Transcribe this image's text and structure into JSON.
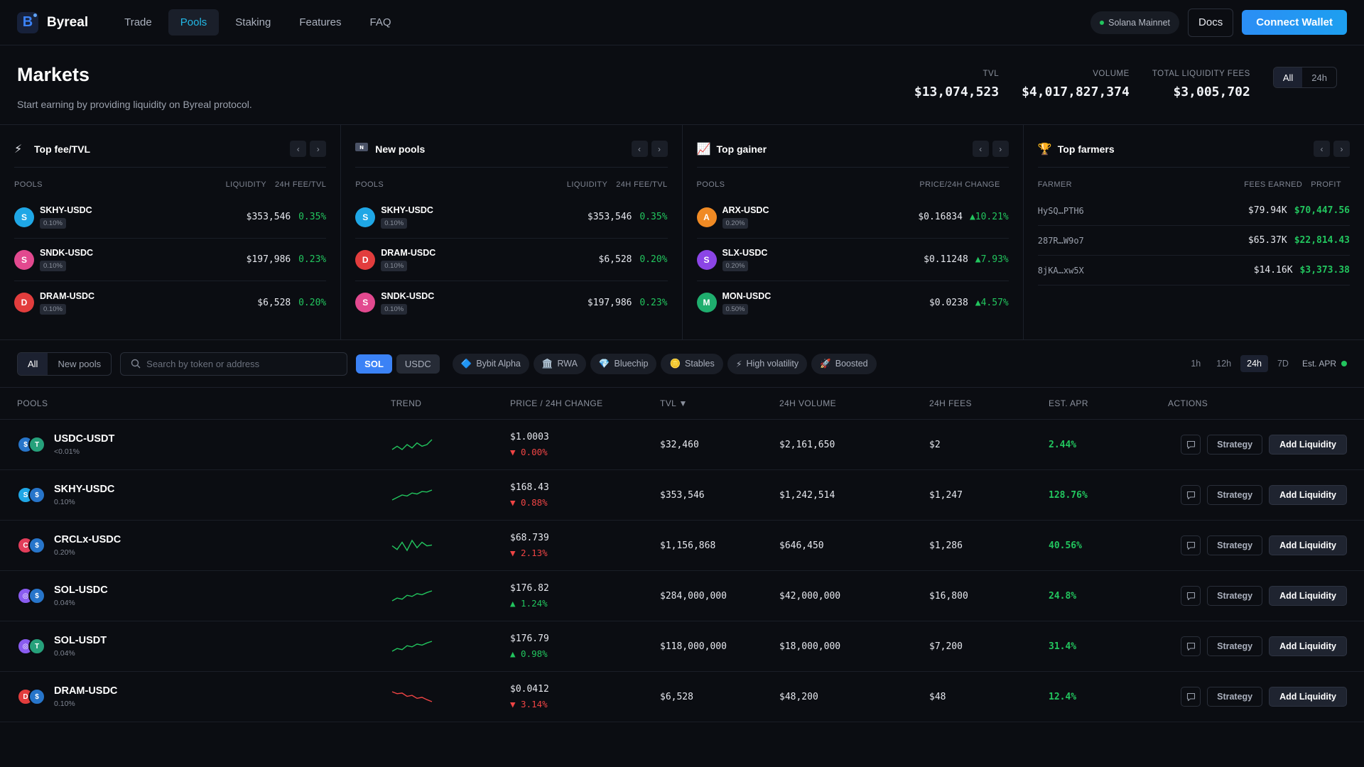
{
  "app": {
    "name": "Byreal",
    "logo_letter": "B"
  },
  "nav": [
    {
      "label": "Trade",
      "active": false
    },
    {
      "label": "Pools",
      "active": true
    },
    {
      "label": "Staking",
      "active": false
    },
    {
      "label": "Features",
      "active": false
    },
    {
      "label": "FAQ",
      "active": false
    }
  ],
  "header_right": {
    "network": "Solana Mainnet",
    "docs": "Docs",
    "connect": "Connect Wallet"
  },
  "markets": {
    "title": "Markets",
    "subtitle": "Start earning by providing liquidity on Byreal protocol.",
    "stats": [
      {
        "label": "TVL",
        "value": "$13,074,523"
      },
      {
        "label": "VOLUME",
        "value": "$4,017,827,374"
      },
      {
        "label": "TOTAL LIQUIDITY FEES",
        "value": "$3,005,702"
      }
    ],
    "range": [
      "All",
      "24h"
    ]
  },
  "cards": {
    "top_fee": {
      "title": "Top fee/TVL",
      "icon": "lightning-icon",
      "cols": [
        "POOLS",
        "LIQUIDITY",
        "24H FEE/TVL"
      ],
      "rows": [
        {
          "letter": "S",
          "color": "#1fa7e6",
          "name": "SKHY-USDC",
          "fee": "0.10%",
          "v1": "$353,546",
          "v2": "0.35%"
        },
        {
          "letter": "S",
          "color": "#e2498f",
          "name": "SNDK-USDC",
          "fee": "0.10%",
          "v1": "$197,986",
          "v2": "0.23%"
        },
        {
          "letter": "D",
          "color": "#e23d3d",
          "name": "DRAM-USDC",
          "fee": "0.10%",
          "v1": "$6,528",
          "v2": "0.20%"
        }
      ]
    },
    "new_pools": {
      "title": "New pools",
      "icon": "new-icon",
      "cols": [
        "POOLS",
        "LIQUIDITY",
        "24H FEE/TVL"
      ],
      "rows": [
        {
          "letter": "S",
          "color": "#1fa7e6",
          "name": "SKHY-USDC",
          "fee": "0.10%",
          "v1": "$353,546",
          "v2": "0.35%"
        },
        {
          "letter": "D",
          "color": "#e23d3d",
          "name": "DRAM-USDC",
          "fee": "0.10%",
          "v1": "$6,528",
          "v2": "0.20%"
        },
        {
          "letter": "S",
          "color": "#e2498f",
          "name": "SNDK-USDC",
          "fee": "0.10%",
          "v1": "$197,986",
          "v2": "0.23%"
        }
      ]
    },
    "top_gainer": {
      "title": "Top gainer",
      "icon": "chart-up-icon",
      "cols": [
        "POOLS",
        "PRICE/24H CHANGE"
      ],
      "rows": [
        {
          "letter": "A",
          "color": "#f08a24",
          "name": "ARX-USDC",
          "fee": "0.20%",
          "v1": "$0.16834",
          "v2": "▲10.21%"
        },
        {
          "letter": "S",
          "color": "#8b45e6",
          "name": "SLX-USDC",
          "fee": "0.20%",
          "v1": "$0.11248",
          "v2": "▲7.93%"
        },
        {
          "letter": "M",
          "color": "#1fae6e",
          "name": "MON-USDC",
          "fee": "0.50%",
          "v1": "$0.0238",
          "v2": "▲4.57%"
        }
      ]
    },
    "top_farmers": {
      "title": "Top farmers",
      "icon": "trophy-icon",
      "cols": [
        "FARMER",
        "FEES EARNED",
        "PROFIT"
      ],
      "rows": [
        {
          "farmer": "HySQ…PTH6",
          "earned": "$79.94K",
          "profit": "$70,447.56"
        },
        {
          "farmer": "287R…W9o7",
          "earned": "$65.37K",
          "profit": "$22,814.43"
        },
        {
          "farmer": "8jKA…xw5X",
          "earned": "$14.16K",
          "profit": "$3,373.38"
        }
      ]
    }
  },
  "filters": {
    "tabs": [
      "All",
      "New pools"
    ],
    "search_placeholder": "Search by token or address",
    "tokens": [
      "SOL",
      "USDC"
    ],
    "categories": [
      {
        "icon": "diamond-icon",
        "glyph": "🔷",
        "label": "Bybit Alpha"
      },
      {
        "icon": "bank-icon",
        "glyph": "🏛️",
        "label": "RWA"
      },
      {
        "icon": "gem-icon",
        "glyph": "💎",
        "label": "Bluechip"
      },
      {
        "icon": "coin-icon",
        "glyph": "🪙",
        "label": "Stables"
      },
      {
        "icon": "lightning-icon",
        "glyph": "⚡",
        "label": "High volatility"
      },
      {
        "icon": "rocket-icon",
        "glyph": "🚀",
        "label": "Boosted"
      }
    ],
    "timeframes": [
      "1h",
      "12h",
      "24h",
      "7D"
    ],
    "active_timeframe": "24h",
    "est_apr": "Est. APR"
  },
  "table": {
    "headers": [
      "POOLS",
      "TREND",
      "PRICE / 24H CHANGE",
      "TVL ▼",
      "24H VOLUME",
      "24H FEES",
      "EST. APR",
      "ACTIONS"
    ],
    "strategy_label": "Strategy",
    "add_label": "Add Liquidity",
    "rows": [
      {
        "name": "USDC-USDT",
        "fee": "<0.01%",
        "a": "$",
        "ac": "#2775ca",
        "b": "T",
        "bc": "#26a17b",
        "price": "$1.0003",
        "change": "▼ 0.00%",
        "dir": "down",
        "tvl": "$32,460",
        "volume": "$2,161,650",
        "fees": "$2",
        "apr": "2.44%",
        "trend": [
          5,
          5.2,
          5.0,
          5.3,
          5.1,
          5.4,
          5.2,
          5.3,
          5.6
        ]
      },
      {
        "name": "SKHY-USDC",
        "fee": "0.10%",
        "a": "S",
        "ac": "#1fa7e6",
        "b": "$",
        "bc": "#2775ca",
        "price": "$168.43",
        "change": "▼ 0.88%",
        "dir": "down",
        "tvl": "$353,546",
        "volume": "$1,242,514",
        "fees": "$1,247",
        "apr": "128.76%",
        "trend": [
          1,
          2,
          3,
          2.6,
          3.8,
          3.4,
          4.4,
          4.2,
          5
        ]
      },
      {
        "name": "CRCLx-USDC",
        "fee": "0.20%",
        "a": "C",
        "ac": "#e23d5a",
        "b": "$",
        "bc": "#2775ca",
        "price": "$68.739",
        "change": "▼ 2.13%",
        "dir": "down",
        "tvl": "$1,156,868",
        "volume": "$646,450",
        "fees": "$1,286",
        "apr": "40.56%",
        "trend": [
          3,
          2.6,
          3.4,
          2.5,
          3.6,
          2.8,
          3.4,
          3.0,
          3.1
        ]
      },
      {
        "name": "SOL-USDC",
        "fee": "0.04%",
        "a": "◎",
        "ac": "#8a5cf0",
        "b": "$",
        "bc": "#2775ca",
        "price": "$176.82",
        "change": "▲ 1.24%",
        "dir": "up",
        "tvl": "$284,000,000",
        "volume": "$42,000,000",
        "fees": "$16,800",
        "apr": "24.8%",
        "trend": [
          1,
          2,
          1.6,
          3,
          2.6,
          3.6,
          3.2,
          4,
          4.6
        ]
      },
      {
        "name": "SOL-USDT",
        "fee": "0.04%",
        "a": "◎",
        "ac": "#8a5cf0",
        "b": "T",
        "bc": "#26a17b",
        "price": "$176.79",
        "change": "▲ 0.98%",
        "dir": "up",
        "tvl": "$118,000,000",
        "volume": "$18,000,000",
        "fees": "$7,200",
        "apr": "31.4%",
        "trend": [
          1,
          2,
          1.6,
          3,
          2.6,
          3.6,
          3.2,
          4,
          4.6
        ]
      },
      {
        "name": "DRAM-USDC",
        "fee": "0.10%",
        "a": "D",
        "ac": "#e23d3d",
        "b": "$",
        "bc": "#2775ca",
        "price": "$0.0412",
        "change": "▼ 3.14%",
        "dir": "down",
        "tvl": "$6,528",
        "volume": "$48,200",
        "fees": "$48",
        "apr": "12.4%",
        "trend": [
          5,
          4.4,
          4.6,
          3.6,
          3.9,
          3.0,
          3.3,
          2.6,
          2
        ]
      }
    ]
  },
  "colors": {
    "up": "#22c55e",
    "down": "#ef4444",
    "accent": "#3b82f6"
  }
}
